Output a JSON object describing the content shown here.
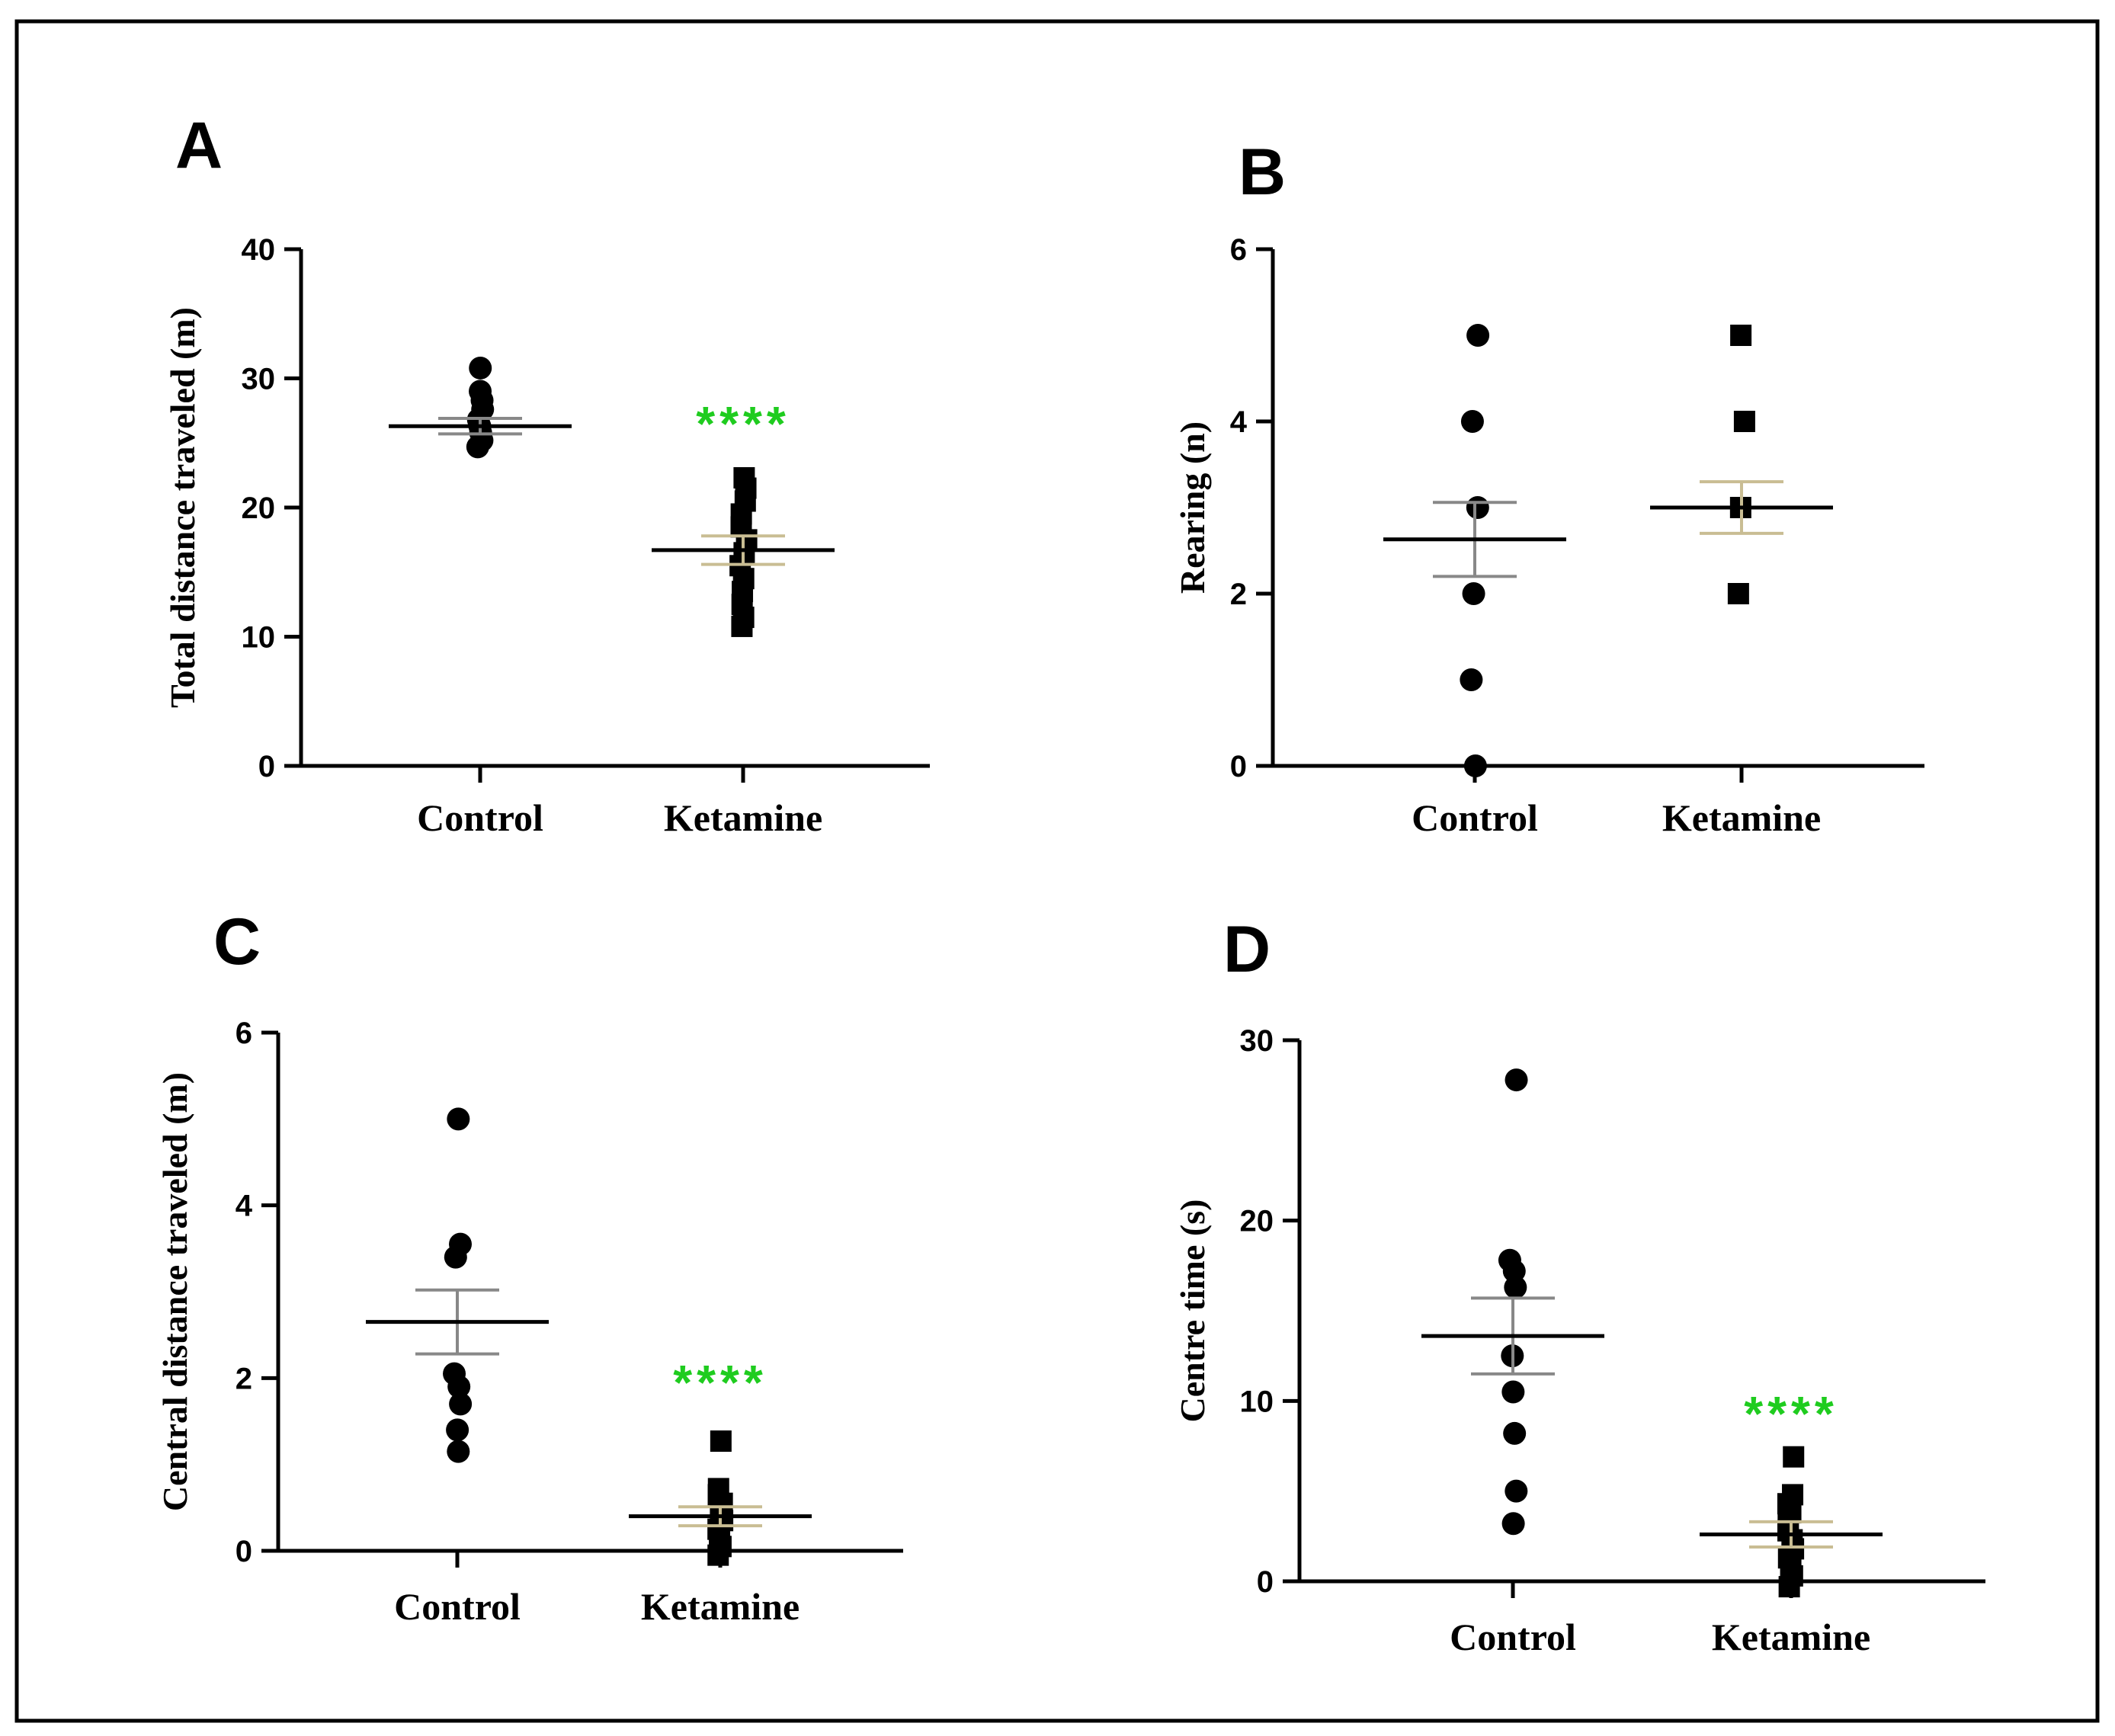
{
  "chart_data": [
    {
      "panel": "A",
      "type": "scatter",
      "ylabel": "Total distance traveled (m)",
      "ylim": [
        0,
        40
      ],
      "yticks": [
        0,
        10,
        20,
        30,
        40
      ],
      "categories": [
        "Control",
        "Ketamine"
      ],
      "groups": [
        {
          "name": "Control",
          "marker": "circle",
          "values": [
            24.7,
            25.2,
            25.8,
            26.3,
            26.8,
            27.6,
            28.3,
            29.0,
            30.8
          ],
          "mean": 26.3,
          "sem": 0.6,
          "err_color": "#888888"
        },
        {
          "name": "Ketamine",
          "marker": "square",
          "values": [
            10.8,
            11.5,
            12.5,
            13.5,
            14.5,
            15.5,
            16.5,
            17.5,
            18.5,
            19.5,
            20.5,
            21.5,
            22.3
          ],
          "mean": 16.7,
          "sem": 1.1,
          "err_color": "#c9bd93"
        }
      ],
      "significance": {
        "label": "****",
        "group": "Ketamine",
        "y": 26.5
      }
    },
    {
      "panel": "B",
      "type": "scatter",
      "ylabel": "Rearing (n)",
      "ylim": [
        0,
        6
      ],
      "yticks": [
        0,
        2,
        4,
        6
      ],
      "categories": [
        "Control",
        "Ketamine"
      ],
      "groups": [
        {
          "name": "Control",
          "marker": "circle",
          "values": [
            0,
            1,
            2,
            3,
            4,
            5
          ],
          "mean": 2.63,
          "sem": 0.43,
          "err_color": "#888888"
        },
        {
          "name": "Ketamine",
          "marker": "square",
          "values": [
            2,
            3,
            4,
            5
          ],
          "mean": 3.0,
          "sem": 0.3,
          "err_color": "#c9bd93"
        }
      ]
    },
    {
      "panel": "C",
      "type": "scatter",
      "ylabel": "Central distance traveled (m)",
      "ylim": [
        0,
        6
      ],
      "yticks": [
        0,
        2,
        4,
        6
      ],
      "categories": [
        "Control",
        "Ketamine"
      ],
      "groups": [
        {
          "name": "Control",
          "marker": "circle",
          "values": [
            1.15,
            1.4,
            1.7,
            1.9,
            2.05,
            3.4,
            3.55,
            5.0
          ],
          "mean": 2.65,
          "sem": 0.37,
          "err_color": "#888888"
        },
        {
          "name": "Ketamine",
          "marker": "square",
          "values": [
            -0.05,
            0.05,
            0.15,
            0.25,
            0.35,
            0.45,
            0.55,
            0.65,
            0.72,
            1.27
          ],
          "mean": 0.4,
          "sem": 0.11,
          "err_color": "#c9bd93"
        }
      ],
      "significance": {
        "label": "****",
        "group": "Ketamine",
        "y": 1.95
      }
    },
    {
      "panel": "D",
      "type": "scatter",
      "ylabel": "Centre time (s)",
      "ylim": [
        0,
        30
      ],
      "yticks": [
        0,
        10,
        20,
        30
      ],
      "categories": [
        "Control",
        "Ketamine"
      ],
      "groups": [
        {
          "name": "Control",
          "marker": "circle",
          "values": [
            3.2,
            5.0,
            8.2,
            10.5,
            12.5,
            16.3,
            17.2,
            17.8,
            27.8
          ],
          "mean": 13.6,
          "sem": 2.1,
          "err_color": "#888888"
        },
        {
          "name": "Ketamine",
          "marker": "square",
          "values": [
            -0.3,
            0.3,
            0.8,
            1.3,
            1.8,
            2.3,
            2.8,
            3.3,
            3.8,
            4.3,
            4.8,
            6.9
          ],
          "mean": 2.6,
          "sem": 0.7,
          "err_color": "#c9bd93"
        }
      ],
      "significance": {
        "label": "****",
        "group": "Ketamine",
        "y": 9.3
      }
    }
  ]
}
